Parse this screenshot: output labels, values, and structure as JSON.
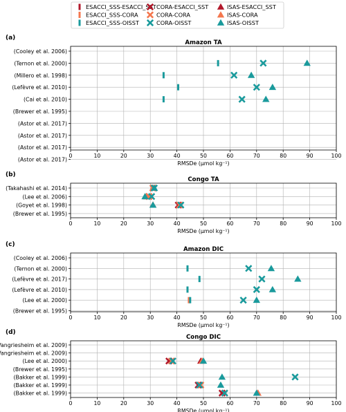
{
  "legend": {
    "placement": "top-center",
    "entries": [
      {
        "label": "ESACCI_SSS-ESACCI_SST",
        "marker": "bar",
        "color": "#b2182b"
      },
      {
        "label": "CORA-ESACCI_SST",
        "marker": "x",
        "color": "#b2182b"
      },
      {
        "label": "ISAS-ESACCI_SST",
        "marker": "triangle",
        "color": "#b2182b"
      },
      {
        "label": "ESACCI_SSS-CORA",
        "marker": "bar",
        "color": "#f4774e"
      },
      {
        "label": "CORA-CORA",
        "marker": "x",
        "color": "#f4774e"
      },
      {
        "label": "ISAS-CORA",
        "marker": "triangle",
        "color": "#f4774e"
      },
      {
        "label": "ESACCI_SSS-OISST",
        "marker": "bar",
        "color": "#1a9a9c"
      },
      {
        "label": "CORA-OISST",
        "marker": "x",
        "color": "#1a9a9c"
      },
      {
        "label": "ISAS-OISST",
        "marker": "triangle",
        "color": "#1a9a9c"
      }
    ]
  },
  "colors": {
    "ESACCI_SST": "#b2182b",
    "CORA": "#f4774e",
    "OISST": "#1a9a9c"
  },
  "chart_data": [
    {
      "type": "scatter",
      "panel_label": "(a)",
      "title": "Amazon TA",
      "xlabel": "RMSDe (µmol kg⁻¹)",
      "xlim": [
        0,
        100
      ],
      "xticks": [
        0,
        10,
        20,
        30,
        40,
        50,
        60,
        70,
        80,
        90,
        100
      ],
      "grid": true,
      "categories": [
        "(Cooley et al. 2006)",
        "(Ternon et al. 2000)",
        "(Millero et al. 1998)",
        "(Lefèvre et al. 2010)",
        "(Cai et al. 2010)",
        "(Brewer et al. 1995)",
        "(Astor et al. 2017)",
        "(Astor et al. 2017)",
        "(Astor et al. 2017)",
        "(Astor et al. 2017)"
      ],
      "series": [
        {
          "name": "ESACCI_SSS-OISST",
          "marker": "bar",
          "color_key": "OISST",
          "points": [
            {
              "row": 1,
              "x": 55.5
            },
            {
              "row": 2,
              "x": 35
            },
            {
              "row": 3,
              "x": 40.5
            },
            {
              "row": 4,
              "x": 35
            }
          ]
        },
        {
          "name": "CORA-OISST",
          "marker": "x",
          "color_key": "OISST",
          "points": [
            {
              "row": 1,
              "x": 72.5
            },
            {
              "row": 2,
              "x": 61.5
            },
            {
              "row": 3,
              "x": 70
            },
            {
              "row": 4,
              "x": 64.5
            }
          ]
        },
        {
          "name": "ISAS-OISST",
          "marker": "triangle",
          "color_key": "OISST",
          "points": [
            {
              "row": 1,
              "x": 89
            },
            {
              "row": 2,
              "x": 68
            },
            {
              "row": 3,
              "x": 76
            },
            {
              "row": 4,
              "x": 73.5
            }
          ]
        }
      ]
    },
    {
      "type": "scatter",
      "panel_label": "(b)",
      "title": "Congo TA",
      "xlabel": "RMSDe (µmol kg⁻¹)",
      "xlim": [
        0,
        100
      ],
      "xticks": [
        0,
        10,
        20,
        30,
        40,
        50,
        60,
        70,
        80,
        90,
        100
      ],
      "grid": true,
      "categories": [
        "(Takahashi et al. 2014)",
        "(Lee et al. 2006)",
        "(Goyet et al. 1998)",
        "(Brewer et al. 1995)"
      ],
      "series": [
        {
          "name": "CORA-ESACCI_SST",
          "marker": "x",
          "color_key": "ESACCI_SST",
          "points": [
            {
              "row": 0,
              "x": 31
            },
            {
              "row": 1,
              "x": 29.5
            },
            {
              "row": 2,
              "x": 40.5
            }
          ]
        },
        {
          "name": "ISAS-ESACCI_SST",
          "marker": "triangle",
          "color_key": "ESACCI_SST",
          "points": [
            {
              "row": 0,
              "x": 31
            },
            {
              "row": 1,
              "x": 28.5
            },
            {
              "row": 2,
              "x": 31
            }
          ]
        },
        {
          "name": "CORA-CORA",
          "marker": "x",
          "color_key": "CORA",
          "points": [
            {
              "row": 0,
              "x": 31
            },
            {
              "row": 1,
              "x": 29.5
            },
            {
              "row": 2,
              "x": 41
            }
          ]
        },
        {
          "name": "ISAS-CORA",
          "marker": "triangle",
          "color_key": "CORA",
          "points": [
            {
              "row": 0,
              "x": 31
            },
            {
              "row": 1,
              "x": 28.5
            },
            {
              "row": 2,
              "x": 31
            }
          ]
        },
        {
          "name": "CORA-OISST",
          "marker": "x",
          "color_key": "OISST",
          "points": [
            {
              "row": 0,
              "x": 31.5
            },
            {
              "row": 1,
              "x": 30.5
            },
            {
              "row": 2,
              "x": 41.5
            }
          ]
        },
        {
          "name": "ISAS-OISST",
          "marker": "triangle",
          "color_key": "OISST",
          "points": [
            {
              "row": 0,
              "x": 31.5
            },
            {
              "row": 1,
              "x": 28
            },
            {
              "row": 2,
              "x": 31
            }
          ]
        }
      ]
    },
    {
      "type": "scatter",
      "panel_label": "(c)",
      "title": "Amazon DIC",
      "xlabel": "RMSDe (µmol kg⁻¹)",
      "xlim": [
        0,
        100
      ],
      "xticks": [
        0,
        10,
        20,
        30,
        40,
        50,
        60,
        70,
        80,
        90,
        100
      ],
      "grid": true,
      "categories": [
        "(Cooley et al. 2006)",
        "(Ternon et al. 2000)",
        "(Lefèvre et al. 2017)",
        "(Lefèvre et al. 2010)",
        "(Lee et al. 2000)",
        "(Brewer et al. 1995)"
      ],
      "series": [
        {
          "name": "ESACCI_SSS-CORA",
          "marker": "bar",
          "color_key": "CORA",
          "points": [
            {
              "row": 4,
              "x": 44.5
            }
          ]
        },
        {
          "name": "ESACCI_SSS-OISST",
          "marker": "bar",
          "color_key": "OISST",
          "points": [
            {
              "row": 1,
              "x": 44
            },
            {
              "row": 2,
              "x": 48.5
            },
            {
              "row": 3,
              "x": 44
            },
            {
              "row": 4,
              "x": 45
            }
          ]
        },
        {
          "name": "CORA-OISST",
          "marker": "x",
          "color_key": "OISST",
          "points": [
            {
              "row": 1,
              "x": 67
            },
            {
              "row": 2,
              "x": 72
            },
            {
              "row": 3,
              "x": 70
            },
            {
              "row": 4,
              "x": 65
            }
          ]
        },
        {
          "name": "ISAS-OISST",
          "marker": "triangle",
          "color_key": "OISST",
          "points": [
            {
              "row": 1,
              "x": 75.5
            },
            {
              "row": 2,
              "x": 85.5
            },
            {
              "row": 3,
              "x": 76
            },
            {
              "row": 4,
              "x": 70
            }
          ]
        }
      ]
    },
    {
      "type": "scatter",
      "panel_label": "(d)",
      "title": "Congo DIC",
      "xlabel": "RMSDe (µmol kg⁻¹)",
      "xlim": [
        0,
        100
      ],
      "xticks": [
        0,
        10,
        20,
        30,
        40,
        50,
        60,
        70,
        80,
        90,
        100
      ],
      "grid": true,
      "categories": [
        "(Vangriesheim et al. 2009)",
        "(Vangriesheim et al. 2009)",
        "(Lee et al. 2000)",
        "(Brewer et al. 1995)",
        "(Bakker et al. 1999)",
        "(Bakker et al. 1999)",
        "(Bakker et al. 1999)"
      ],
      "series": [
        {
          "name": "CORA-ESACCI_SST",
          "marker": "x",
          "color_key": "ESACCI_SST",
          "points": [
            {
              "row": 2,
              "x": 37
            },
            {
              "row": 5,
              "x": 48
            },
            {
              "row": 6,
              "x": 57
            }
          ]
        },
        {
          "name": "ISAS-ESACCI_SST",
          "marker": "triangle",
          "color_key": "ESACCI_SST",
          "points": [
            {
              "row": 2,
              "x": 49
            },
            {
              "row": 6,
              "x": 70.5
            }
          ]
        },
        {
          "name": "CORA-CORA",
          "marker": "x",
          "color_key": "CORA",
          "points": [
            {
              "row": 2,
              "x": 38
            },
            {
              "row": 5,
              "x": 49
            },
            {
              "row": 6,
              "x": 58
            }
          ]
        },
        {
          "name": "ISAS-CORA",
          "marker": "triangle",
          "color_key": "CORA",
          "points": [
            {
              "row": 2,
              "x": 49.5
            },
            {
              "row": 6,
              "x": 70.5
            }
          ]
        },
        {
          "name": "CORA-OISST",
          "marker": "x",
          "color_key": "OISST",
          "points": [
            {
              "row": 2,
              "x": 38.5
            },
            {
              "row": 4,
              "x": 84.5
            },
            {
              "row": 5,
              "x": 48.5
            },
            {
              "row": 6,
              "x": 58
            }
          ]
        },
        {
          "name": "ISAS-OISST",
          "marker": "triangle",
          "color_key": "OISST",
          "points": [
            {
              "row": 2,
              "x": 50
            },
            {
              "row": 4,
              "x": 57
            },
            {
              "row": 5,
              "x": 56.5
            },
            {
              "row": 6,
              "x": 70
            }
          ]
        }
      ]
    }
  ]
}
